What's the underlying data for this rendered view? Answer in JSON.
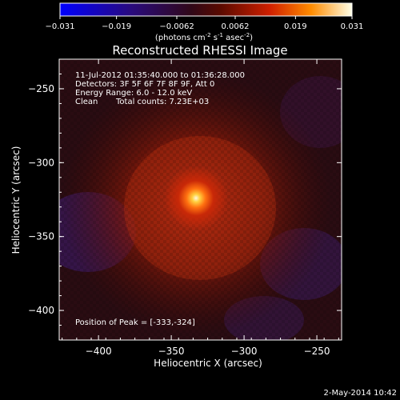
{
  "colorbar": {
    "ticks": [
      "-0.031",
      "-0.019",
      "-0.0062",
      "0.0062",
      "0.019",
      "0.031"
    ],
    "unit_prefix": "(photons cm",
    "unit_exp1": "-2",
    "unit_mid": " s",
    "unit_exp2": "-1",
    "unit_mid2": " asec",
    "unit_exp3": "-2",
    "unit_suffix": ")"
  },
  "chart_data": {
    "type": "heatmap",
    "title": "Reconstructed RHESSI Image",
    "xlabel": "Heliocentric X (arcsec)",
    "ylabel": "Heliocentric Y (arcsec)",
    "xlim": [
      -427,
      -233
    ],
    "ylim": [
      -420,
      -230
    ],
    "x_ticks": [
      -400,
      -350,
      -300,
      -250
    ],
    "y_ticks": [
      -250,
      -300,
      -350,
      -400
    ],
    "peak": [
      -333,
      -324
    ],
    "color_range": [
      -0.031,
      0.031
    ],
    "annotations": {
      "time_range": "11-Jul-2012 01:35:40.000 to 01:36:28.000",
      "detectors": "Detectors: 3F 5F 6F 7F 8F 9F, Att 0",
      "energy": "Energy Range: 6.0 - 12.0 keV",
      "method": "Clean",
      "counts": "Total counts: 7.23E+03",
      "peak_label": "Position of Peak = [-333,-324]"
    }
  },
  "footer": {
    "timestamp": "2-May-2014 10:42"
  }
}
